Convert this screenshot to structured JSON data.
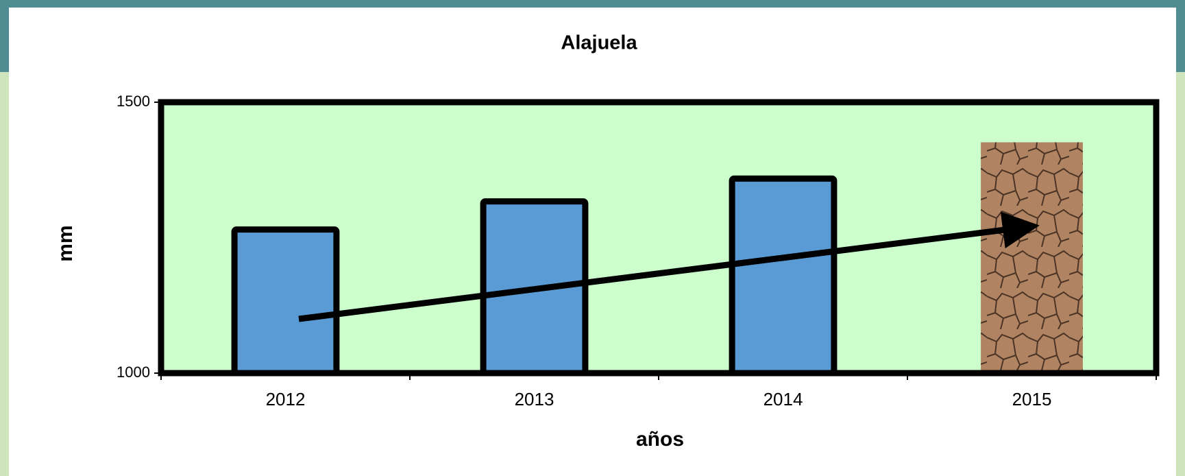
{
  "chart_data": {
    "type": "bar",
    "title": "Alajuela",
    "x_label": "años",
    "y_label": "mm",
    "categories": [
      "2012",
      "2013",
      "2014",
      "2015"
    ],
    "values": [
      1265,
      1317,
      1359,
      1426
    ],
    "colors": [
      "#5b9bd5",
      "#5b9bd5",
      "#5b9bd5",
      "#a57a58"
    ],
    "ylim": [
      1000,
      1500
    ],
    "yticks": [
      1000,
      1500
    ],
    "background": "#ccffcc"
  }
}
